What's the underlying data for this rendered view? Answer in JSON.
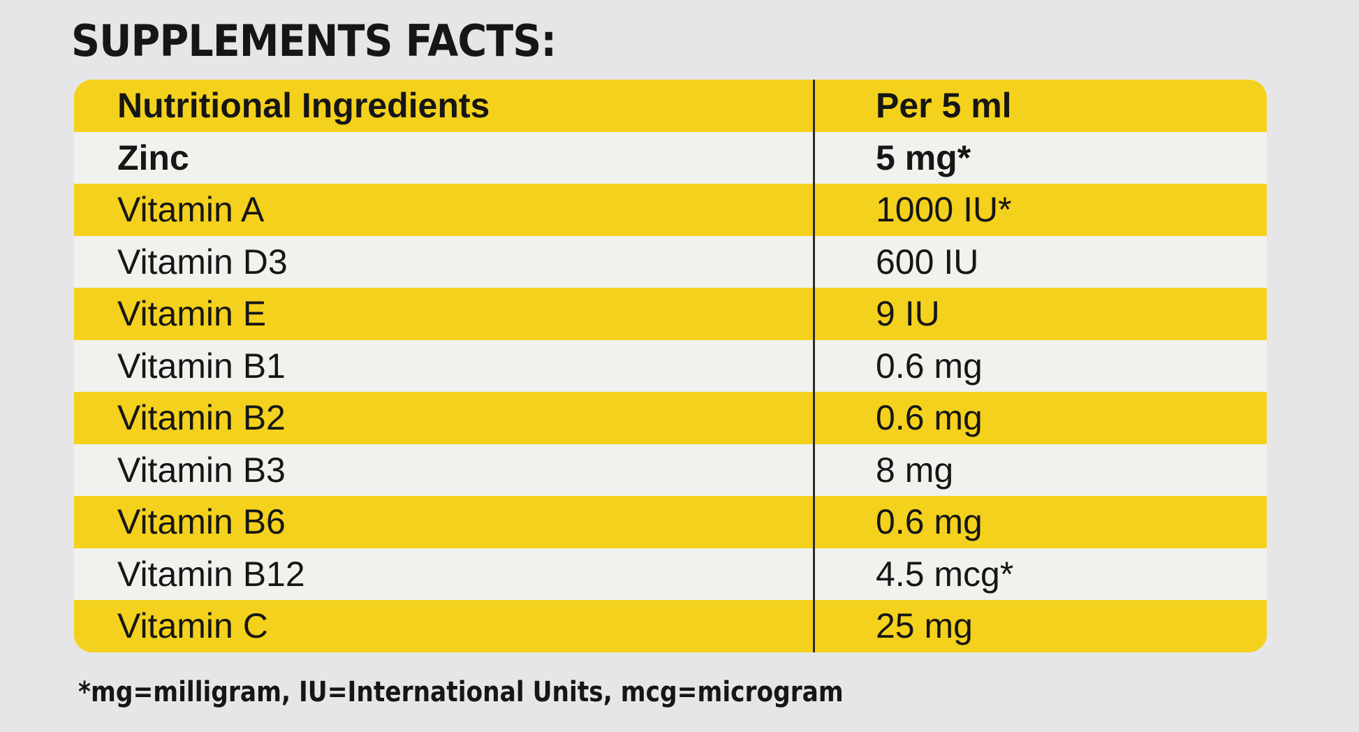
{
  "title": "SUPPLEMENTS FACTS:",
  "table": {
    "headers": [
      "Nutritional Ingredients",
      "Per 5 ml"
    ],
    "rows": [
      [
        "Zinc",
        "5 mg*"
      ],
      [
        "Vitamin A",
        "1000 IU*"
      ],
      [
        "Vitamin D3",
        "600 IU"
      ],
      [
        "Vitamin E",
        "9 IU"
      ],
      [
        "Vitamin B1",
        "0.6 mg"
      ],
      [
        "Vitamin B2",
        "0.6 mg"
      ],
      [
        "Vitamin B3",
        "8 mg"
      ],
      [
        "Vitamin B6",
        "0.6 mg"
      ],
      [
        "Vitamin B12",
        "4.5 mcg*"
      ],
      [
        "Vitamin C",
        "25 mg"
      ]
    ]
  },
  "footnote": "*mg=milligram, IU=International Units, mcg=microgram",
  "colors": {
    "stripe_yellow": "#f4d11c",
    "stripe_white": "#f1f1ee",
    "background": "#e6e6e8"
  }
}
